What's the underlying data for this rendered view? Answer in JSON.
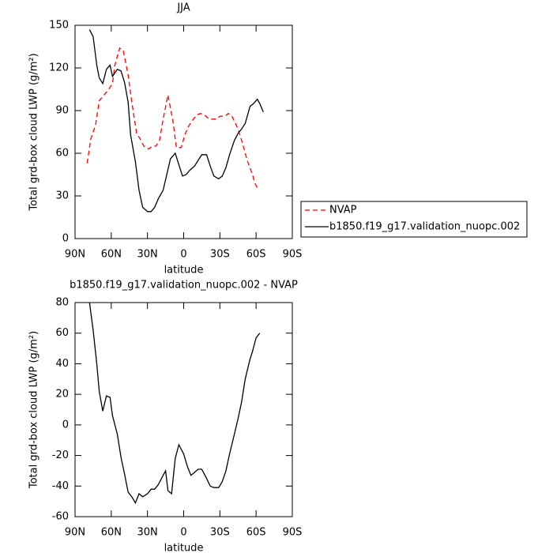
{
  "chart_data": [
    {
      "type": "line",
      "title": "JJA",
      "xlabel": "latitude",
      "ylabel": "Total grd-box cloud LWP (g/m²)",
      "xlim": [
        90,
        -90
      ],
      "xticks": [
        {
          "value": 90,
          "label": "90N"
        },
        {
          "value": 60,
          "label": "60N"
        },
        {
          "value": 30,
          "label": "30N"
        },
        0,
        {
          "value": -30,
          "label": "30S"
        },
        {
          "value": -60,
          "label": "60S"
        },
        {
          "value": -90,
          "label": "90S"
        }
      ],
      "ylim": [
        0,
        150
      ],
      "yticks": [
        0,
        30,
        60,
        90,
        120,
        150
      ],
      "legend": "right",
      "series": [
        {
          "name": "NVAP",
          "color": "#ff0000",
          "dashed": true,
          "x": [
            80,
            77,
            73,
            70,
            66,
            63,
            59,
            57,
            53,
            50,
            46,
            43,
            39,
            36,
            33,
            29,
            26,
            23,
            20,
            17,
            13,
            9,
            6,
            2,
            -1,
            -4,
            -8,
            -11,
            -14,
            -17,
            -21,
            -24,
            -27,
            -30,
            -34,
            -37,
            -40,
            -44,
            -47,
            -50,
            -53,
            -57,
            -59,
            -62
          ],
          "values": [
            53,
            70,
            80,
            97,
            101,
            104,
            109,
            122,
            134,
            132,
            115,
            96,
            74,
            70,
            65,
            63,
            65,
            65,
            69,
            84,
            101,
            83,
            64,
            64,
            73,
            79,
            84,
            87,
            88,
            87,
            84,
            84,
            84,
            86,
            86,
            88,
            86,
            79,
            72,
            63,
            54,
            45,
            39,
            34
          ]
        },
        {
          "name": "b1850.f19_g17.validation_nuopc.002",
          "color": "#000000",
          "dashed": false,
          "x": [
            78,
            75,
            72,
            70,
            67,
            64,
            61,
            59,
            55,
            52,
            49,
            46,
            44,
            40,
            37,
            34,
            30,
            27,
            24,
            21,
            17,
            14,
            11,
            7,
            4,
            1,
            -2,
            -5,
            -9,
            -12,
            -15,
            -19,
            -22,
            -25,
            -29,
            -32,
            -35,
            -38,
            -42,
            -45,
            -48,
            -51,
            -55,
            -58,
            -61,
            -63,
            -66
          ],
          "values": [
            147,
            142,
            122,
            113,
            109,
            119,
            122,
            114,
            119,
            118,
            110,
            96,
            73,
            54,
            34,
            22,
            19,
            19,
            22,
            28,
            34,
            45,
            56,
            60,
            52,
            44,
            45,
            48,
            51,
            55,
            59,
            59,
            51,
            44,
            42,
            44,
            50,
            59,
            69,
            74,
            77,
            81,
            93,
            95,
            98,
            95,
            89
          ]
        }
      ]
    },
    {
      "type": "line",
      "title": "b1850.f19_g17.validation_nuopc.002 - NVAP",
      "xlabel": "latitude",
      "ylabel": "Total grd-box cloud LWP (g/m²)",
      "xlim": [
        90,
        -90
      ],
      "xticks": [
        {
          "value": 90,
          "label": "90N"
        },
        {
          "value": 60,
          "label": "60N"
        },
        {
          "value": 30,
          "label": "30N"
        },
        0,
        {
          "value": -30,
          "label": "30S"
        },
        {
          "value": -60,
          "label": "60S"
        },
        {
          "value": -90,
          "label": "90S"
        }
      ],
      "ylim": [
        -60,
        80
      ],
      "yticks": [
        -60,
        -40,
        -20,
        0,
        20,
        40,
        60,
        80
      ],
      "series": [
        {
          "color": "#000000",
          "dashed": false,
          "x": [
            78,
            75,
            72,
            70,
            67,
            64,
            61,
            59,
            55,
            52,
            49,
            46,
            43,
            40,
            37,
            34,
            30,
            27,
            24,
            21,
            17,
            15,
            13,
            10,
            7,
            4,
            0,
            -3,
            -6,
            -9,
            -12,
            -15,
            -19,
            -22,
            -25,
            -29,
            -32,
            -35,
            -38,
            -42,
            -45,
            -48,
            -51,
            -55,
            -57,
            -60,
            -63
          ],
          "values": [
            80,
            62,
            40,
            22,
            9,
            19,
            18,
            6,
            -6,
            -21,
            -32,
            -44,
            -47,
            -51,
            -45,
            -47,
            -45,
            -42,
            -42,
            -39,
            -33,
            -30,
            -43,
            -45,
            -22,
            -13,
            -19,
            -27,
            -33,
            -31,
            -29,
            -29,
            -35,
            -40,
            -41,
            -41,
            -37,
            -30,
            -19,
            -6,
            4,
            15,
            30,
            43,
            48,
            57,
            60
          ]
        }
      ]
    }
  ]
}
